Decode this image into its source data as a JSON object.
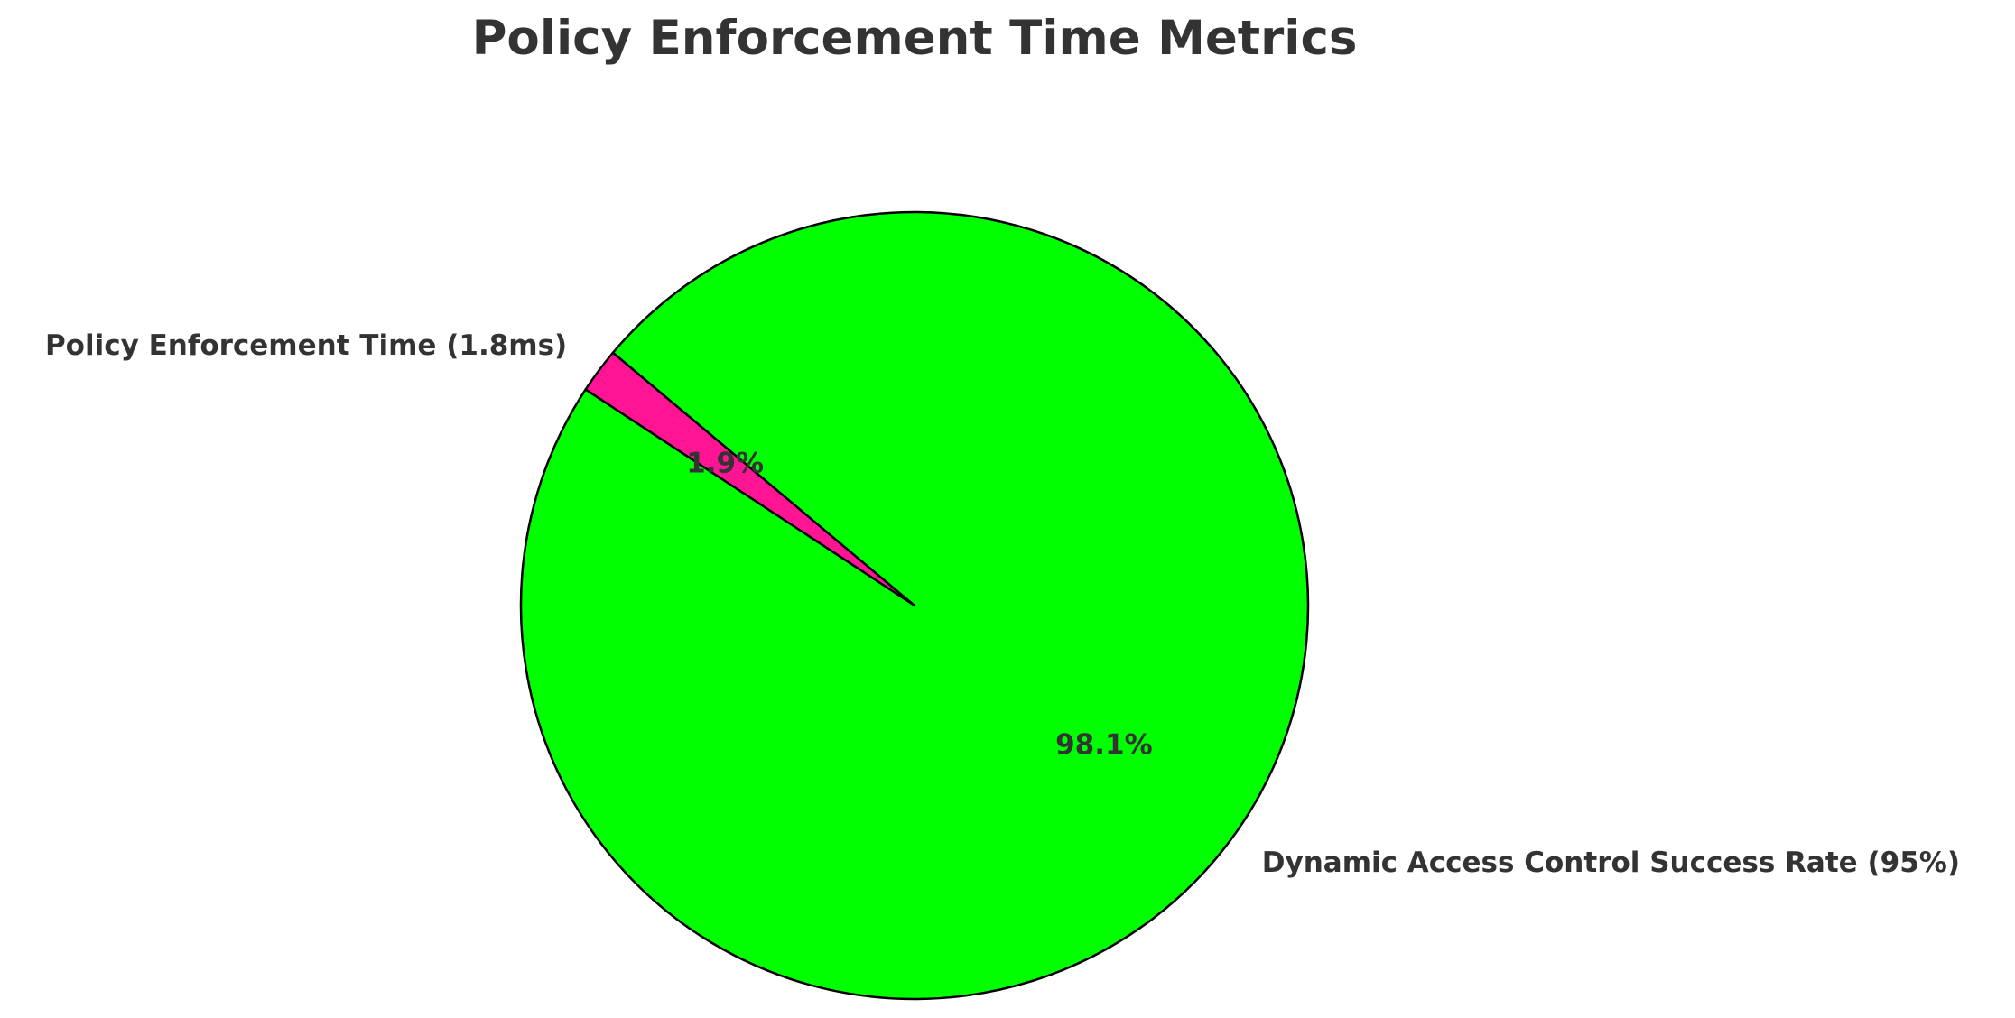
{
  "chart_data": {
    "type": "pie",
    "title": "Policy Enforcement Time Metrics",
    "start_angle_deg": 140,
    "counterclockwise": true,
    "edge_color": "#000000",
    "slices": [
      {
        "label": "Policy Enforcement Time (1.8ms)",
        "value": 1.8,
        "percent_label": "1.9%",
        "color": "#FF1493"
      },
      {
        "label": "Dynamic Access Control Success Rate (95%)",
        "value": 95,
        "percent_label": "98.1%",
        "color": "#00FF00"
      }
    ]
  }
}
